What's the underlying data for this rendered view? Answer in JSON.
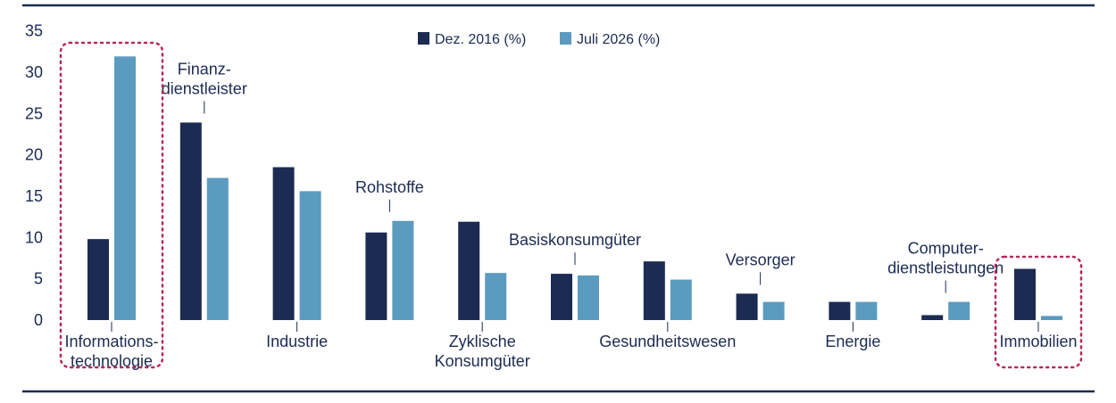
{
  "chart_data": {
    "type": "bar",
    "ylim": [
      0,
      35
    ],
    "yticks": [
      0,
      5,
      10,
      15,
      20,
      25,
      30,
      35
    ],
    "grid": false,
    "legend": "top-center",
    "categories": [
      [
        "Informations-",
        "technologie"
      ],
      [
        "Finanz-",
        "dienstleister"
      ],
      [
        "Industrie"
      ],
      [
        "Rohstoffe"
      ],
      [
        "Zyklische",
        "Konsumgüter"
      ],
      [
        "Basiskonsumgüter"
      ],
      [
        "Gesundheitswesen"
      ],
      [
        "Versorger"
      ],
      [
        "Energie"
      ],
      [
        "Computer-",
        "dienstleistungen"
      ],
      [
        "Immobilien"
      ]
    ],
    "series": [
      {
        "name": "Dez. 2016 (%)",
        "color": "#1c2b52",
        "values": [
          9.8,
          23.9,
          18.5,
          10.6,
          11.9,
          5.6,
          7.1,
          3.2,
          2.2,
          0.6,
          6.2
        ]
      },
      {
        "name": "Juli 2026 (%)",
        "color": "#5b9bbf",
        "values": [
          31.9,
          17.2,
          15.6,
          12.0,
          5.7,
          5.4,
          4.9,
          2.2,
          2.2,
          2.2,
          0.5
        ]
      }
    ],
    "highlight_color": "#b5295c",
    "highlighted_categories": [
      0,
      10
    ]
  }
}
